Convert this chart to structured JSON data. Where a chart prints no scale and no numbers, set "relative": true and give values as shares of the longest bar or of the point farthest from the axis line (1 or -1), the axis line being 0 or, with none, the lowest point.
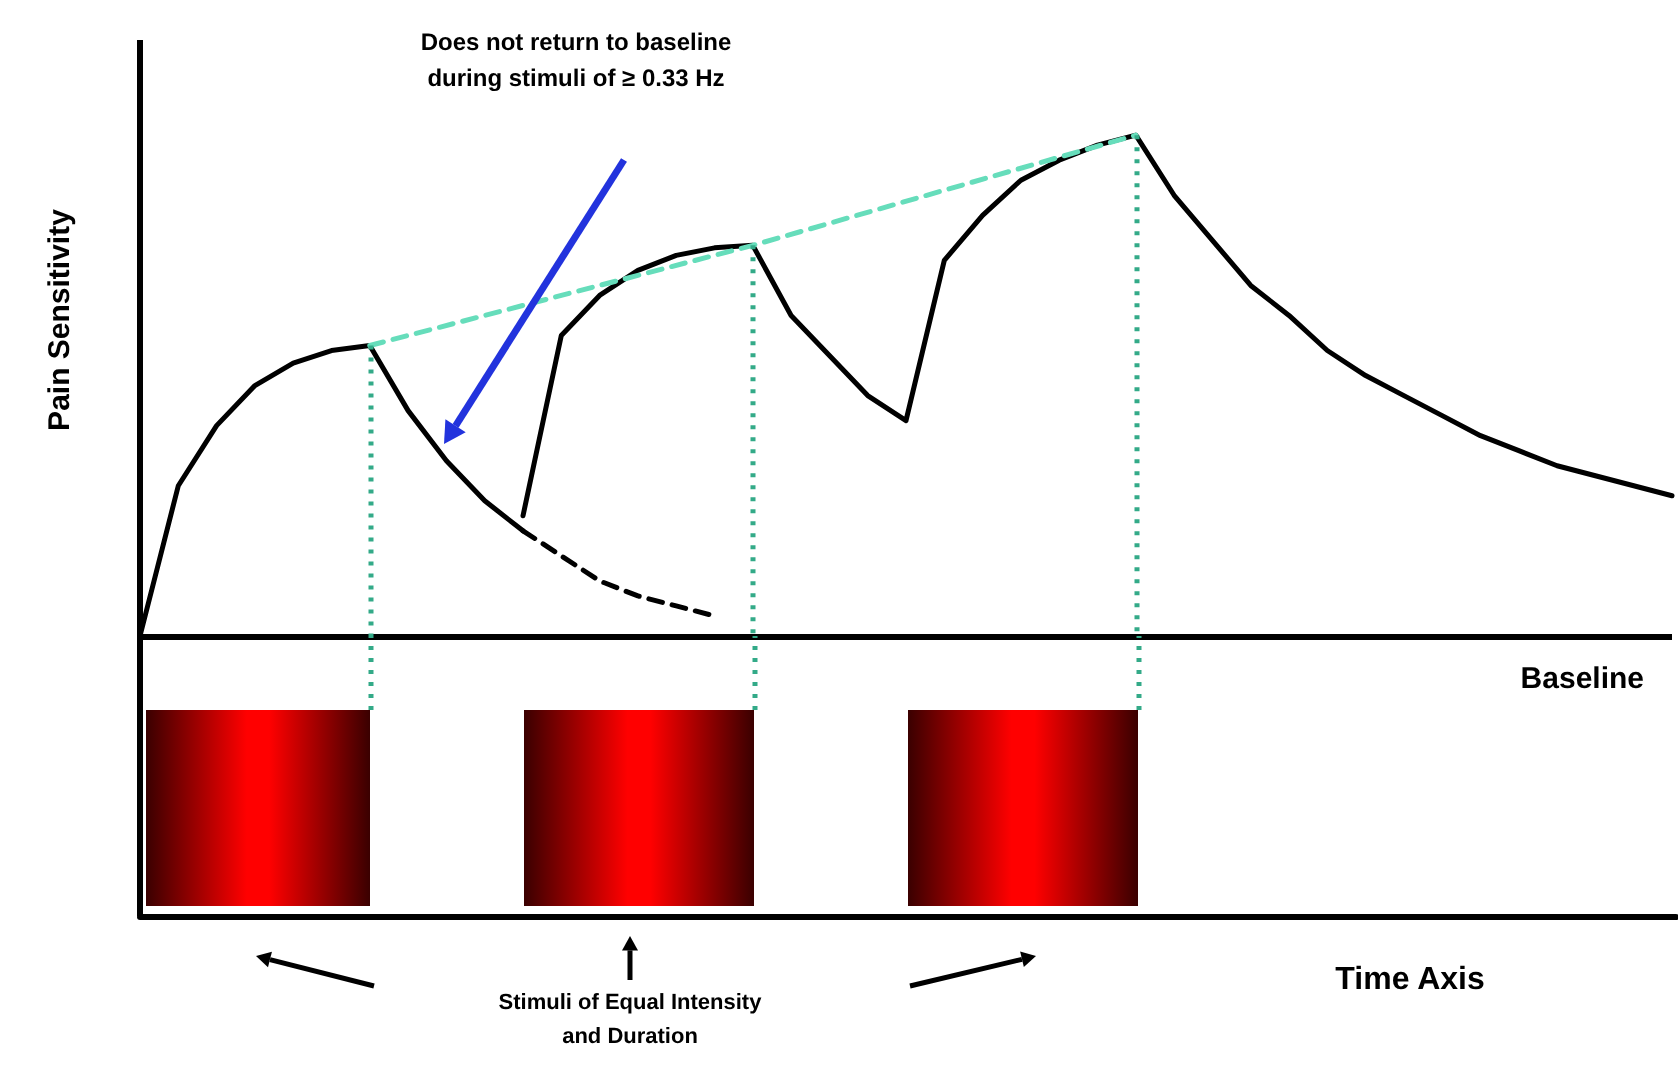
{
  "chart_data": {
    "type": "line",
    "relative": true,
    "ylabel": "Pain Sensitivity",
    "marker": "none",
    "categories": [
      null,
      null,
      null,
      null,
      null,
      null,
      null,
      null,
      null,
      null,
      null,
      null,
      null,
      null,
      null,
      null,
      null,
      null,
      null,
      null,
      null,
      null,
      null,
      null,
      null,
      null,
      null,
      null,
      null,
      null,
      null,
      null,
      null,
      null,
      null,
      null,
      null,
      null,
      null,
      null,
      null
    ],
    "series": [
      {
        "color": "#000000",
        "line_style": "solid",
        "values": [
          0,
          0.3,
          0.42,
          0.5,
          0.545,
          0.57,
          0.58,
          0.45,
          0.35,
          0.27,
          0.21,
          null,
          null,
          null,
          null,
          null,
          null,
          null,
          null,
          null,
          null,
          null,
          null,
          null,
          null,
          null,
          null,
          null,
          null,
          null,
          null,
          null,
          null,
          null,
          null,
          null,
          null,
          null,
          null,
          null,
          null
        ]
      },
      {
        "color": "#000000",
        "line_style": "dashed",
        "values": [
          null,
          null,
          null,
          null,
          null,
          null,
          null,
          null,
          null,
          null,
          0.21,
          0.16,
          0.11,
          0.08,
          0.06,
          0.04,
          null,
          null,
          null,
          null,
          null,
          null,
          null,
          null,
          null,
          null,
          null,
          null,
          null,
          null,
          null,
          null,
          null,
          null,
          null,
          null,
          null,
          null,
          null,
          null,
          null
        ]
      },
      {
        "color": "#000000",
        "line_style": "solid",
        "values": [
          null,
          null,
          null,
          null,
          null,
          null,
          null,
          null,
          null,
          null,
          0.24,
          0.6,
          0.68,
          0.73,
          0.76,
          0.775,
          0.78,
          0.64,
          0.56,
          0.48,
          0.43,
          0.75,
          0.84,
          0.91,
          0.95,
          0.98,
          1,
          0.88,
          0.79,
          0.7,
          0.64,
          0.57,
          0.52,
          0.48,
          0.44,
          0.4,
          0.37,
          0.34,
          0.32,
          0.3,
          0.28
        ]
      },
      {
        "color": "#66ddbb",
        "line_style": "dashed",
        "values": [
          null,
          null,
          null,
          null,
          null,
          null,
          0.58,
          null,
          null,
          null,
          null,
          null,
          null,
          null,
          null,
          null,
          0.78,
          null,
          null,
          null,
          null,
          null,
          null,
          null,
          null,
          null,
          1,
          null,
          null,
          null,
          null,
          null,
          null,
          null,
          null,
          null,
          null,
          null,
          null,
          null,
          null
        ]
      }
    ],
    "ref_lines": [
      {
        "axis": "y",
        "value": 0,
        "label": "Baseline",
        "color": "#000000",
        "line_style": "solid"
      }
    ],
    "annotations": [
      "Does not return to baseline\nduring stimuli of ≥ 0.33 Hz",
      "Stimuli of Equal Intensity\nand Duration",
      "Time Axis"
    ]
  }
}
